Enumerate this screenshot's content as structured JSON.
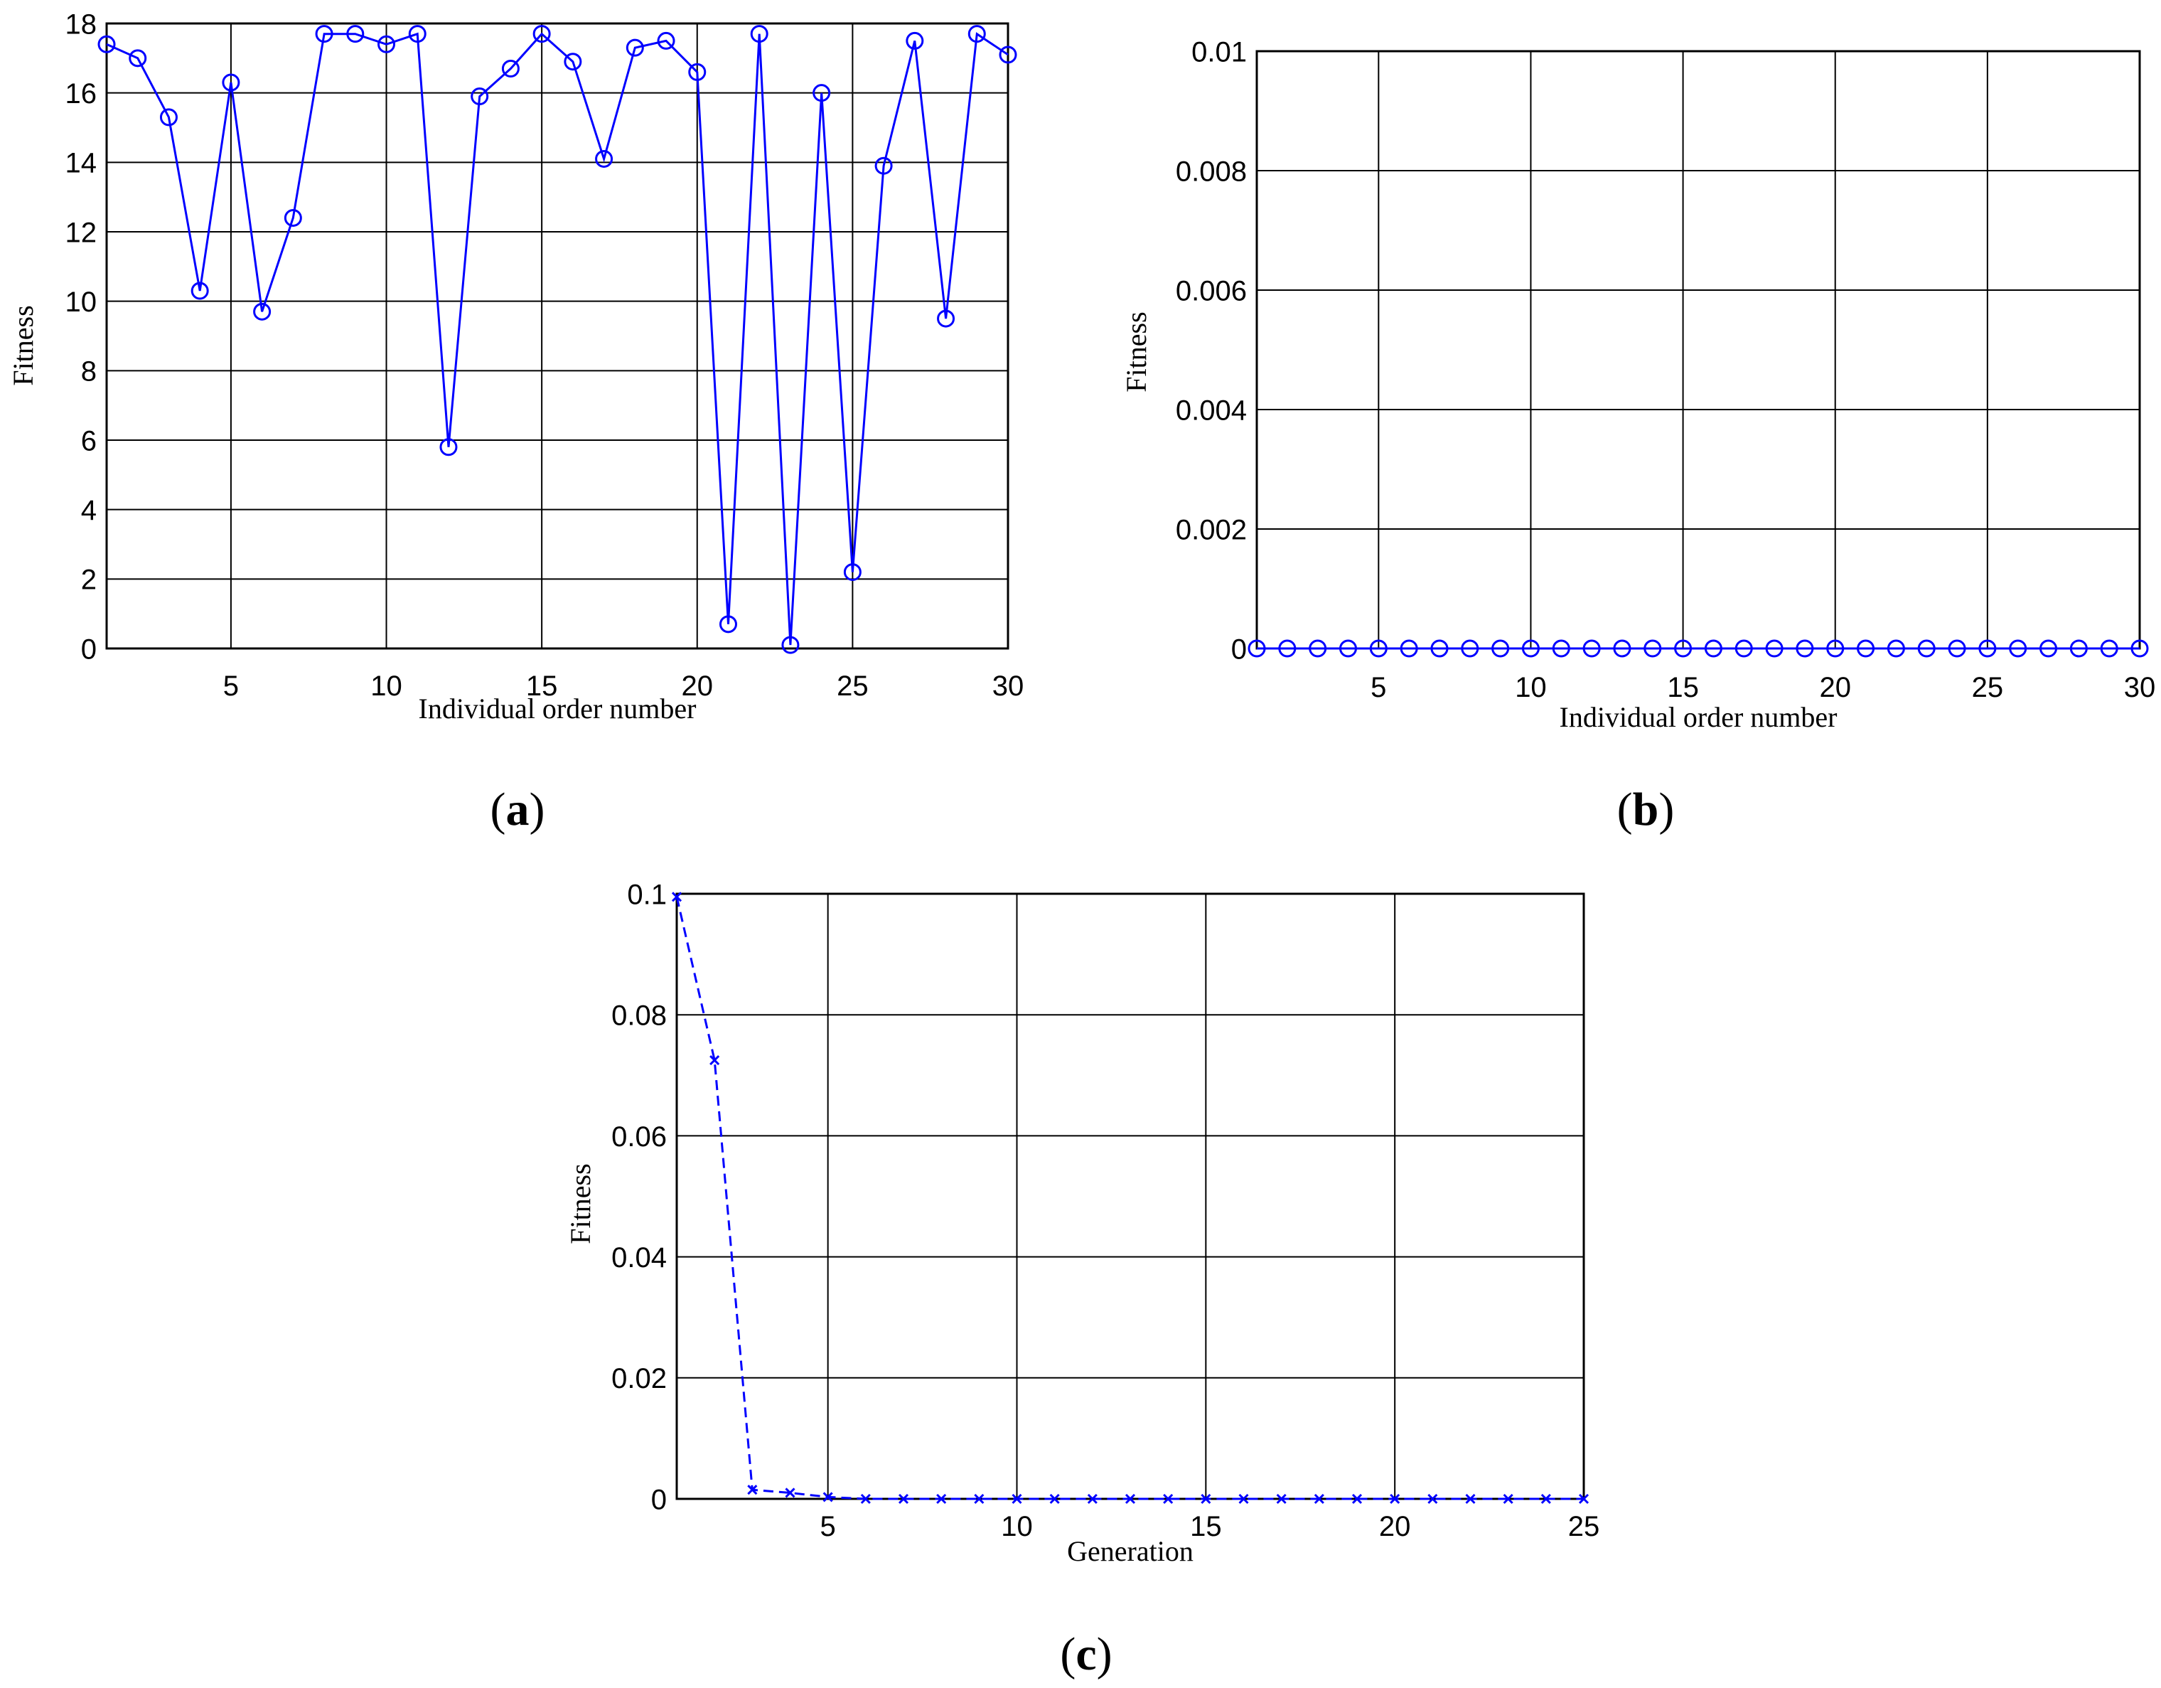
{
  "chart_data": [
    {
      "id": "a",
      "type": "line",
      "caption_letter": "a",
      "title": "",
      "xlabel": "Individual order number",
      "ylabel": "Fitness",
      "xlim": [
        1,
        30
      ],
      "ylim": [
        0,
        18
      ],
      "xticks": [
        5,
        10,
        15,
        20,
        25,
        30
      ],
      "yticks": [
        0,
        2,
        4,
        6,
        8,
        10,
        12,
        14,
        16,
        18
      ],
      "grid": true,
      "marker": "circle",
      "line_style": "solid",
      "color": "#0000ff",
      "series": [
        {
          "x": [
            1,
            2,
            3,
            4,
            5,
            6,
            7,
            8,
            9,
            10,
            11,
            12,
            13,
            14,
            15,
            16,
            17,
            18,
            19,
            20,
            21,
            22,
            23,
            24,
            25,
            26,
            27,
            28,
            29,
            30
          ],
          "values": [
            17.4,
            17.0,
            15.3,
            10.3,
            16.3,
            9.7,
            12.4,
            17.7,
            17.7,
            17.4,
            17.7,
            5.8,
            15.9,
            16.7,
            17.7,
            16.9,
            14.1,
            17.3,
            17.5,
            16.6,
            0.7,
            17.7,
            0.1,
            16.0,
            2.2,
            13.9,
            17.5,
            9.5,
            17.7,
            17.1
          ]
        }
      ]
    },
    {
      "id": "b",
      "type": "line",
      "caption_letter": "b",
      "title": "",
      "xlabel": "Individual order number",
      "ylabel": "Fitness",
      "xlim": [
        1,
        30
      ],
      "ylim": [
        0,
        0.01
      ],
      "xticks": [
        5,
        10,
        15,
        20,
        25,
        30
      ],
      "yticks": [
        0,
        0.002,
        0.004,
        0.006,
        0.008,
        0.01
      ],
      "grid": true,
      "marker": "circle",
      "line_style": "solid",
      "color": "#0000ff",
      "series": [
        {
          "x": [
            1,
            2,
            3,
            4,
            5,
            6,
            7,
            8,
            9,
            10,
            11,
            12,
            13,
            14,
            15,
            16,
            17,
            18,
            19,
            20,
            21,
            22,
            23,
            24,
            25,
            26,
            27,
            28,
            29,
            30
          ],
          "values": [
            0,
            0,
            0,
            0,
            0,
            0,
            0,
            0,
            0,
            0,
            0,
            0,
            0,
            0,
            0,
            0,
            0,
            0,
            0,
            0,
            0,
            0,
            0,
            0,
            0,
            0,
            0,
            0,
            0,
            0
          ]
        }
      ]
    },
    {
      "id": "c",
      "type": "line",
      "caption_letter": "c",
      "title": "",
      "xlabel": "Generation",
      "ylabel": "Fitness",
      "xlim": [
        1,
        25
      ],
      "ylim": [
        0,
        0.1
      ],
      "xticks": [
        5,
        10,
        15,
        20,
        25
      ],
      "yticks": [
        0,
        0.02,
        0.04,
        0.06,
        0.08,
        0.1
      ],
      "grid": true,
      "marker": "x",
      "line_style": "dashed",
      "color": "#0000ff",
      "series": [
        {
          "x": [
            1,
            2,
            3,
            4,
            5,
            6,
            7,
            8,
            9,
            10,
            11,
            12,
            13,
            14,
            15,
            16,
            17,
            18,
            19,
            20,
            21,
            22,
            23,
            24,
            25
          ],
          "values": [
            0.0995,
            0.0725,
            0.0015,
            0.001,
            0.0003,
            0,
            0,
            0,
            0,
            0,
            0,
            0,
            0,
            0,
            0,
            0,
            0,
            0,
            0,
            0,
            0,
            0,
            0,
            0,
            0
          ]
        }
      ]
    }
  ]
}
